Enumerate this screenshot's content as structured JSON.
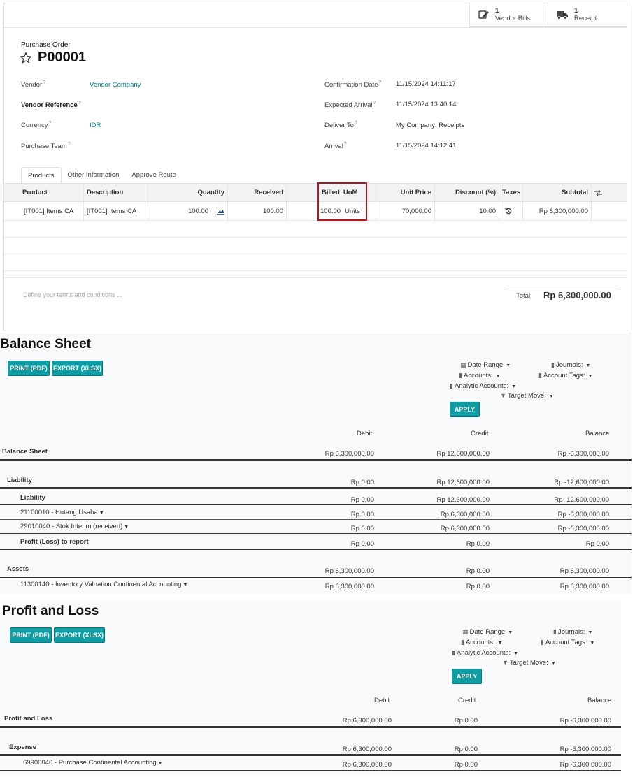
{
  "smart_buttons": [
    {
      "count": "1",
      "label": "Vendor Bills",
      "icon": "edit-icon"
    },
    {
      "count": "1",
      "label": "Receipt",
      "icon": "truck-icon"
    }
  ],
  "purchase_order": {
    "breadcrumb": "Purchase Order",
    "name": "P00001",
    "fields_left": [
      {
        "label": "Vendor",
        "value": "Vendor Company"
      },
      {
        "label": "Vendor Reference",
        "value": ""
      },
      {
        "label": "Currency",
        "value": "IDR"
      },
      {
        "label": "Purchase Team",
        "value": ""
      }
    ],
    "fields_right": [
      {
        "label": "Confirmation Date",
        "value": "11/15/2024 14:11:17"
      },
      {
        "label": "Expected Arrival",
        "value": "11/15/2024 13:40:14"
      },
      {
        "label": "Deliver To",
        "value": "My Company: Receipts"
      },
      {
        "label": "Arrival",
        "value": "11/15/2024 14:12:41"
      }
    ],
    "tabs": [
      "Products",
      "Other Information",
      "Approve Route"
    ],
    "columns": [
      "Product",
      "Description",
      "Quantity",
      "Received",
      "Billed",
      "UoM",
      "Unit Price",
      "Discount (%)",
      "Taxes",
      "Subtotal"
    ],
    "line": {
      "product": "[IT001] Items CA",
      "description": "[IT001] Items CA",
      "quantity": "100.00",
      "received": "100.00",
      "billed": "100.00",
      "uom": "Units",
      "unit_price": "70,000.00",
      "discount": "10.00",
      "subtotal": "Rp 6,300,000.00"
    },
    "terms_placeholder": "Define your terms and conditions ...",
    "total_label": "Total:",
    "total_value": "Rp 6,300,000.00"
  },
  "balance_sheet": {
    "title": "Balance Sheet",
    "buttons": [
      "PRINT (PDF)",
      "EXPORT (XLSX)"
    ],
    "filters": {
      "date_range": "Date Range",
      "journals": "Journals:",
      "accounts": "Accounts:",
      "account_tags": "Account Tags:",
      "analytic_accounts": "Analytic Accounts:",
      "target_move": "Target Move:",
      "apply": "APPLY"
    },
    "headers": [
      "Debit",
      "Credit",
      "Balance"
    ],
    "rows": [
      {
        "label": "Balance Sheet",
        "debit": "Rp 6,300,000.00",
        "credit": "Rp 12,600,000.00",
        "balance": "Rp -6,300,000.00"
      },
      {
        "label": "Liability",
        "debit": "Rp 0.00",
        "credit": "Rp 12,600,000.00",
        "balance": "Rp -12,600,000.00"
      },
      {
        "label": "Liability",
        "debit": "Rp 0.00",
        "credit": "Rp 12,600,000.00",
        "balance": "Rp -12,600,000.00"
      },
      {
        "label": "21100010 - Hutang Usaha",
        "debit": "Rp 0.00",
        "credit": "Rp 6,300,000.00",
        "balance": "Rp -6,300,000.00"
      },
      {
        "label": "29010040 - Stok Interim (received)",
        "debit": "Rp 0.00",
        "credit": "Rp 6,300,000.00",
        "balance": "Rp -6,300,000.00"
      },
      {
        "label": "Profit (Loss) to report",
        "debit": "Rp 0.00",
        "credit": "Rp 0.00",
        "balance": "Rp 0.00"
      },
      {
        "label": "Assets",
        "debit": "Rp 6,300,000.00",
        "credit": "Rp 0.00",
        "balance": "Rp 6,300,000.00"
      },
      {
        "label": "11300140 - Inventory Valuation Continental Accounting",
        "debit": "Rp 6,300,000.00",
        "credit": "Rp 0.00",
        "balance": "Rp 6,300,000.00"
      }
    ]
  },
  "profit_loss": {
    "title": "Profit and Loss",
    "buttons": [
      "PRINT (PDF)",
      "EXPORT (XLSX)"
    ],
    "filters": {
      "date_range": "Date Range",
      "journals": "Journals:",
      "accounts": "Accounts:",
      "account_tags": "Account Tags:",
      "analytic_accounts": "Analytic Accounts:",
      "target_move": "Target Move:",
      "apply": "APPLY"
    },
    "headers": [
      "Debit",
      "Credit",
      "Balance"
    ],
    "rows": [
      {
        "label": "Profit and Loss",
        "debit": "Rp 6,300,000.00",
        "credit": "Rp 0.00",
        "balance": "Rp -6,300,000.00"
      },
      {
        "label": "Expense",
        "debit": "Rp 6,300,000.00",
        "credit": "Rp 0.00",
        "balance": "Rp -6,300,000.00"
      },
      {
        "label": "69900040 - Purchase Continental Accounting",
        "debit": "Rp 6,300,000.00",
        "credit": "Rp 0.00",
        "balance": "Rp -6,300,000.00"
      }
    ]
  }
}
